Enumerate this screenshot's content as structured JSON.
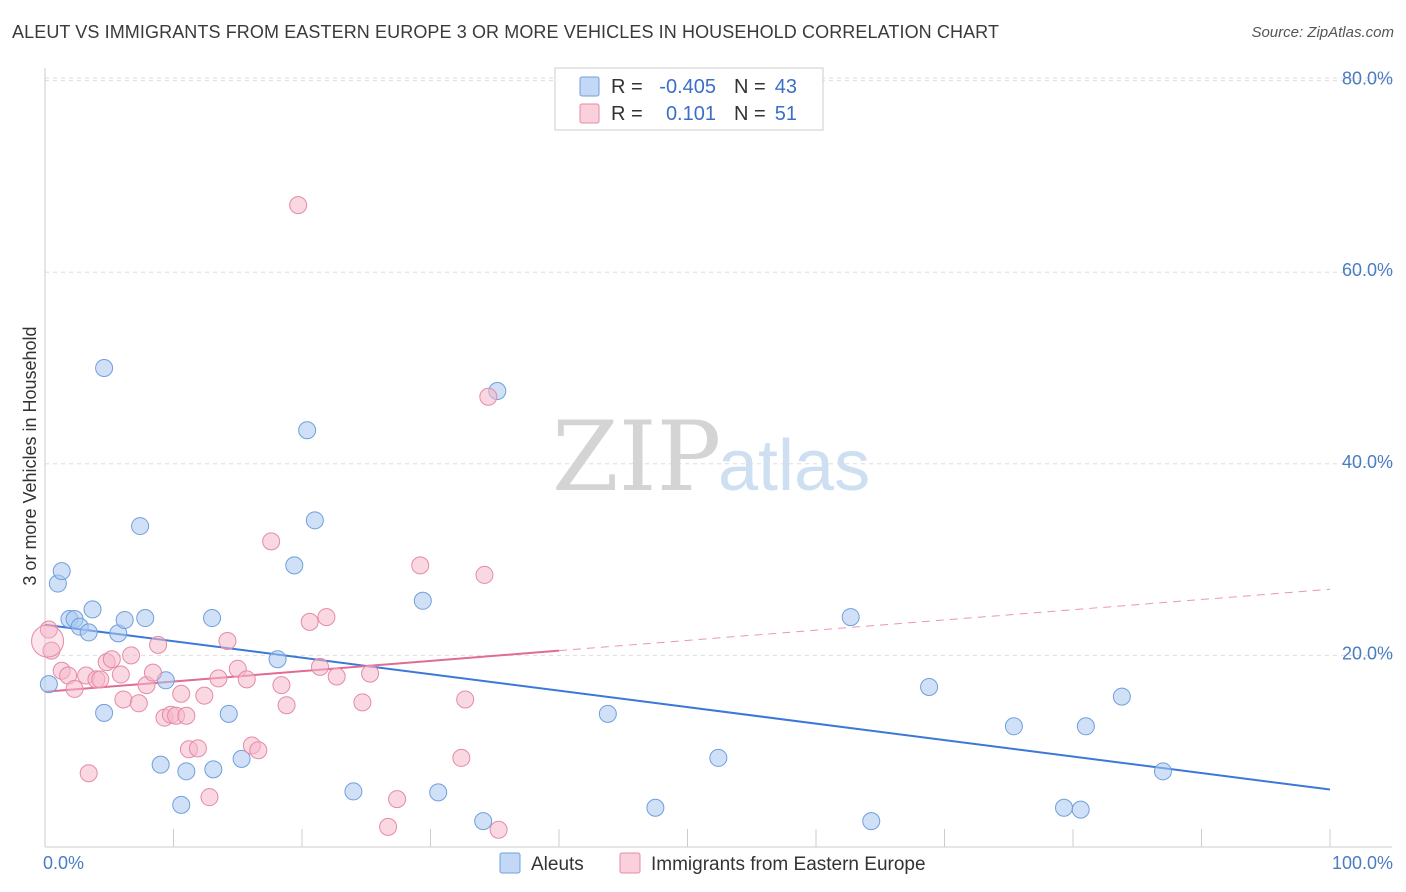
{
  "title": "ALEUT VS IMMIGRANTS FROM EASTERN EUROPE 3 OR MORE VEHICLES IN HOUSEHOLD CORRELATION CHART",
  "source": "Source: ZipAtlas.com",
  "watermark": {
    "zip": "ZIP",
    "atlas": "atlas"
  },
  "legend": {
    "rows": [
      {
        "r_label": "R =",
        "r_value": "-0.405",
        "n_label": "N =",
        "n_value": "43",
        "color": "#a9c8f0"
      },
      {
        "r_label": "R =",
        "r_value": "0.101",
        "n_label": "N =",
        "n_value": "51",
        "color": "#f5b8ca"
      }
    ]
  },
  "chart_data": {
    "type": "scatter",
    "title": "ALEUT VS IMMIGRANTS FROM EASTERN EUROPE 3 OR MORE VEHICLES IN HOUSEHOLD CORRELATION CHART",
    "xlabel": "",
    "ylabel": "3 or more Vehicles in Household",
    "xlim": [
      0,
      100
    ],
    "ylim": [
      0,
      85
    ],
    "x_tick_labels": [
      "0.0%",
      "100.0%"
    ],
    "y_ticks": [
      20,
      40,
      60,
      80
    ],
    "y_tick_labels": [
      "20.0%",
      "40.0%",
      "60.0%",
      "80.0%"
    ],
    "grid": true,
    "legend_position": "top-center",
    "series": [
      {
        "name": "Aleuts",
        "color": "#a9c8f0",
        "edge_color": "#6f9fdc",
        "trend": {
          "x": [
            0,
            100
          ],
          "y": [
            23.2,
            6.0
          ],
          "color": "#3b78d8"
        },
        "points": [
          [
            0.3,
            17.0
          ],
          [
            1.0,
            27.5
          ],
          [
            1.3,
            28.8
          ],
          [
            1.9,
            23.8
          ],
          [
            2.3,
            23.8
          ],
          [
            2.7,
            23.0
          ],
          [
            3.4,
            22.4
          ],
          [
            3.7,
            24.8
          ],
          [
            4.6,
            14.0
          ],
          [
            4.6,
            50.0
          ],
          [
            5.7,
            22.3
          ],
          [
            6.2,
            23.7
          ],
          [
            7.4,
            33.5
          ],
          [
            7.8,
            23.9
          ],
          [
            9.0,
            8.6
          ],
          [
            9.4,
            17.4
          ],
          [
            10.6,
            4.4
          ],
          [
            11.0,
            7.9
          ],
          [
            13.0,
            23.9
          ],
          [
            13.1,
            8.1
          ],
          [
            14.3,
            13.9
          ],
          [
            15.3,
            9.2
          ],
          [
            18.1,
            19.6
          ],
          [
            19.4,
            29.4
          ],
          [
            20.4,
            43.5
          ],
          [
            21.0,
            34.1
          ],
          [
            24.0,
            5.8
          ],
          [
            29.4,
            25.7
          ],
          [
            30.6,
            5.7
          ],
          [
            34.1,
            2.7
          ],
          [
            35.2,
            47.6
          ],
          [
            43.8,
            13.9
          ],
          [
            47.5,
            4.1
          ],
          [
            52.4,
            9.3
          ],
          [
            62.7,
            24.0
          ],
          [
            64.3,
            2.7
          ],
          [
            68.8,
            16.7
          ],
          [
            75.4,
            12.6
          ],
          [
            79.3,
            4.1
          ],
          [
            80.6,
            3.9
          ],
          [
            81.0,
            12.6
          ],
          [
            83.8,
            15.7
          ],
          [
            87.0,
            7.9
          ]
        ]
      },
      {
        "name": "Immigrants from Eastern Europe",
        "color": "#f5b8ca",
        "edge_color": "#e58aa8",
        "trend": {
          "x": [
            0,
            40
          ],
          "y": [
            16.2,
            20.5
          ],
          "color": "#e06b94"
        },
        "trend_extension": {
          "x": [
            40,
            100
          ],
          "y": [
            20.5,
            26.9
          ],
          "dashed": true
        },
        "points": [
          [
            0.3,
            22.7
          ],
          [
            0.5,
            20.5
          ],
          [
            1.3,
            18.4
          ],
          [
            1.8,
            17.9
          ],
          [
            2.3,
            16.5
          ],
          [
            3.2,
            17.9
          ],
          [
            3.4,
            7.7
          ],
          [
            4.0,
            17.5
          ],
          [
            4.3,
            17.5
          ],
          [
            4.8,
            19.3
          ],
          [
            5.2,
            19.6
          ],
          [
            5.9,
            18.0
          ],
          [
            6.1,
            15.4
          ],
          [
            6.7,
            20.0
          ],
          [
            7.3,
            15.0
          ],
          [
            7.9,
            16.9
          ],
          [
            8.4,
            18.2
          ],
          [
            8.8,
            21.1
          ],
          [
            9.3,
            13.5
          ],
          [
            9.8,
            13.8
          ],
          [
            10.2,
            13.7
          ],
          [
            10.6,
            16.0
          ],
          [
            11.0,
            13.7
          ],
          [
            11.2,
            10.2
          ],
          [
            11.9,
            10.3
          ],
          [
            12.4,
            15.8
          ],
          [
            12.8,
            5.2
          ],
          [
            13.5,
            17.6
          ],
          [
            14.2,
            21.5
          ],
          [
            15.0,
            18.6
          ],
          [
            15.7,
            17.5
          ],
          [
            16.1,
            10.6
          ],
          [
            16.6,
            10.1
          ],
          [
            17.6,
            31.9
          ],
          [
            18.4,
            16.9
          ],
          [
            18.8,
            14.8
          ],
          [
            19.7,
            67.0
          ],
          [
            20.6,
            23.5
          ],
          [
            21.4,
            18.8
          ],
          [
            21.9,
            24.0
          ],
          [
            22.7,
            17.8
          ],
          [
            24.7,
            15.1
          ],
          [
            25.3,
            18.1
          ],
          [
            26.7,
            2.1
          ],
          [
            27.4,
            5.0
          ],
          [
            29.2,
            29.4
          ],
          [
            32.4,
            9.3
          ],
          [
            32.7,
            15.4
          ],
          [
            34.2,
            28.4
          ],
          [
            34.5,
            47.0
          ],
          [
            35.3,
            1.8
          ]
        ]
      }
    ]
  }
}
